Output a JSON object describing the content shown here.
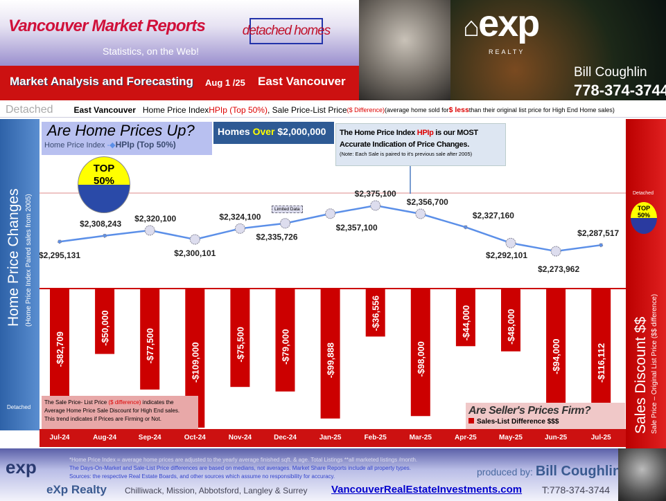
{
  "header": {
    "title": "Vancouver Market Reports",
    "subtitle": "Statistics, on the Web!",
    "badge": "detached homes",
    "tagline": "Market Analysis and Forecasting",
    "date": "Aug 1 /25",
    "area": "East Vancouver",
    "brand": "exp",
    "brand_sub": "REALTY",
    "agent": "Bill Coughlin",
    "phone": "778-374-3744"
  },
  "strip": {
    "category": "Detached",
    "area": "East Vancouver",
    "t1": "Home Price Index ",
    "t2": "HPIp (Top 50%)",
    "t3": ", Sale Price-List Price ",
    "t4": "($ Difference)",
    "t5": " (average home sold for ",
    "t6": "$ less",
    "t7": " than their original list price for High End Home sales)"
  },
  "left_panel": {
    "title": "Home Price Changes",
    "subtitle": "(Home Price Index Paired sales from 2005)",
    "label": "Detached"
  },
  "right_panel": {
    "title": "Sales Discount $$",
    "subtitle": "Sale Price – Original List Price ($$ difference)",
    "label": "Detached",
    "badge": "TOP 50%"
  },
  "boxes": {
    "q1": "Are Home Prices Up?",
    "legend_a": "Home Price Index",
    "legend_b": "HPIp (Top 50%)",
    "homes_a": "Homes ",
    "homes_b": "Over",
    "homes_c": " $2,000,000",
    "note1a": "The Home Price Index ",
    "note1b": "HPIp",
    "note1c": " is our MOST",
    "note2": "Accurate Indication of Price Changes.",
    "note3": "(Note: Each Sale is paired to it's previous sale after 2005)",
    "top_a": "TOP",
    "top_b": "50%",
    "limited": "Limited Data",
    "expl1a": "The  Sale Price- List Price ",
    "expl1b": "($ difference)",
    "expl1c": " indicates the",
    "expl2": "Average Home Price Sale Discount for High End sales.",
    "expl3": "This trend indicates if Prices are Firming or Not.",
    "q2": "Are Seller's Prices Firm?",
    "legend2": "Sales-List Difference $$$"
  },
  "chart_data": {
    "type": "line+bar",
    "categories": [
      "Jul-24",
      "Aug-24",
      "Sep-24",
      "Oct-24",
      "Nov-24",
      "Dec-24",
      "Jan-25",
      "Feb-25",
      "Mar-25",
      "Apr-25",
      "May-25",
      "Jun-25",
      "Jul-25"
    ],
    "series": [
      {
        "name": "HPIp (Top 50%)",
        "type": "line",
        "color": "#5b8fe8",
        "values": [
          2295131,
          2308243,
          2320100,
          2300101,
          2324100,
          2335726,
          2357100,
          2375100,
          2356700,
          2327160,
          2292101,
          2273962,
          2287517
        ],
        "labels": [
          "$2,295,131",
          "$2,308,243",
          "$2,320,100",
          "$2,300,101",
          "$2,324,100",
          "$2,335,726",
          "$2,357,100",
          "$2,375,100",
          "$2,356,700",
          "$2,327,160",
          "$2,292,101",
          "$2,273,962",
          "$2,287,517"
        ]
      },
      {
        "name": "Sales-List Difference $$$",
        "type": "bar",
        "color": "#cc0000",
        "values": [
          -82709,
          -50000,
          -77500,
          -109000,
          -75500,
          -79000,
          -99888,
          -36556,
          -98000,
          -44000,
          -48000,
          -94000,
          -116112
        ],
        "labels": [
          "-$82,709",
          "-$50,000",
          "-$77,500",
          "-$109,000",
          "-$75,500",
          "-$79,000",
          "-$99,888",
          "-$36,556",
          "-$98,000",
          "-$44,000",
          "-$48,000",
          "-$94,000",
          "-$116,112"
        ]
      }
    ]
  },
  "footer": {
    "n1": "*Home Price Index = average home prices are adjusted to the yearly average finished sqft. & age.  Total Listings **all marketed listings /month.",
    "n2": "The Days-On-Market and Sale-List Price differences are based on medians, not averages. Market Share Reports include all property types.",
    "n3": "Sources:  the respective Real Estate Boards, and other sources which assume no responsibility for accuracy.",
    "produced": "produced by: ",
    "name": "Bill Coughlin",
    "company": "eXp Realty",
    "cities": "Chilliwack, Mission, Abbotsford, Langley & Surrey",
    "website": "VancouverRealEstateInvestments.com",
    "phone": "T:778-374-3744",
    "logo": "exp"
  }
}
